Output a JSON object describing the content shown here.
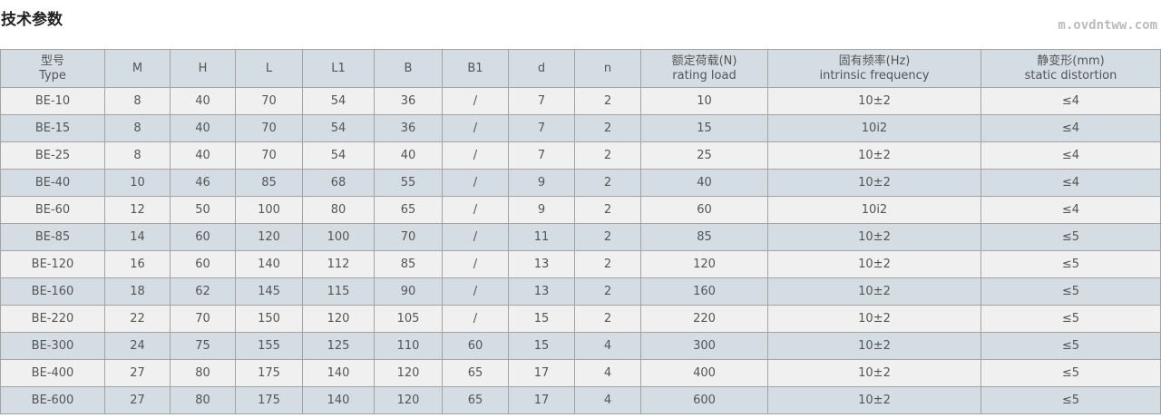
{
  "title": "技术参数",
  "headers": [
    {
      "cn": "型号",
      "en": "Type"
    },
    {
      "cn": "M",
      "en": ""
    },
    {
      "cn": "H",
      "en": ""
    },
    {
      "cn": "L",
      "en": ""
    },
    {
      "cn": "L1",
      "en": ""
    },
    {
      "cn": "B",
      "en": ""
    },
    {
      "cn": "B1",
      "en": ""
    },
    {
      "cn": "d",
      "en": ""
    },
    {
      "cn": "n",
      "en": ""
    },
    {
      "cn": "额定荷载(N)",
      "en": "rating load"
    },
    {
      "cn": "固有频率(Hz)",
      "en": "intrinsic frequency"
    },
    {
      "cn": "静变形(mm)",
      "en": "static distortion"
    }
  ],
  "rows": [
    [
      "BE-10",
      "8",
      "40",
      "70",
      "54",
      "36",
      "/",
      "7",
      "2",
      "10",
      "10±2",
      "≤4"
    ],
    [
      "BE-15",
      "8",
      "40",
      "70",
      "54",
      "36",
      "/",
      "7",
      "2",
      "15",
      "10i2",
      "≤4"
    ],
    [
      "BE-25",
      "8",
      "40",
      "70",
      "54",
      "40",
      "/",
      "7",
      "2",
      "25",
      "10±2",
      "≤4"
    ],
    [
      "BE-40",
      "10",
      "46",
      "85",
      "68",
      "55",
      "/",
      "9",
      "2",
      "40",
      "10±2",
      "≤4"
    ],
    [
      "BE-60",
      "12",
      "50",
      "100",
      "80",
      "65",
      "/",
      "9",
      "2",
      "60",
      "10i2",
      "≤4"
    ],
    [
      "BE-85",
      "14",
      "60",
      "120",
      "100",
      "70",
      "/",
      "11",
      "2",
      "85",
      "10±2",
      "≤5"
    ],
    [
      "BE-120",
      "16",
      "60",
      "140",
      "112",
      "85",
      "/",
      "13",
      "2",
      "120",
      "10±2",
      "≤5"
    ],
    [
      "BE-160",
      "18",
      "62",
      "145",
      "115",
      "90",
      "/",
      "13",
      "2",
      "160",
      "10±2",
      "≤5"
    ],
    [
      "BE-220",
      "22",
      "70",
      "150",
      "120",
      "105",
      "/",
      "15",
      "2",
      "220",
      "10±2",
      "≤5"
    ],
    [
      "BE-300",
      "24",
      "75",
      "155",
      "125",
      "110",
      "60",
      "15",
      "4",
      "300",
      "10±2",
      "≤5"
    ],
    [
      "BE-400",
      "27",
      "80",
      "175",
      "140",
      "120",
      "65",
      "17",
      "4",
      "400",
      "10±2",
      "≤5"
    ],
    [
      "BE-600",
      "27",
      "80",
      "175",
      "140",
      "120",
      "65",
      "17",
      "4",
      "600",
      "10±2",
      "≤5"
    ]
  ],
  "watermark": "m.ovdntww.com",
  "colors": {
    "header_bg": "#d4dde4",
    "row_alt": "#f0f0f0"
  }
}
